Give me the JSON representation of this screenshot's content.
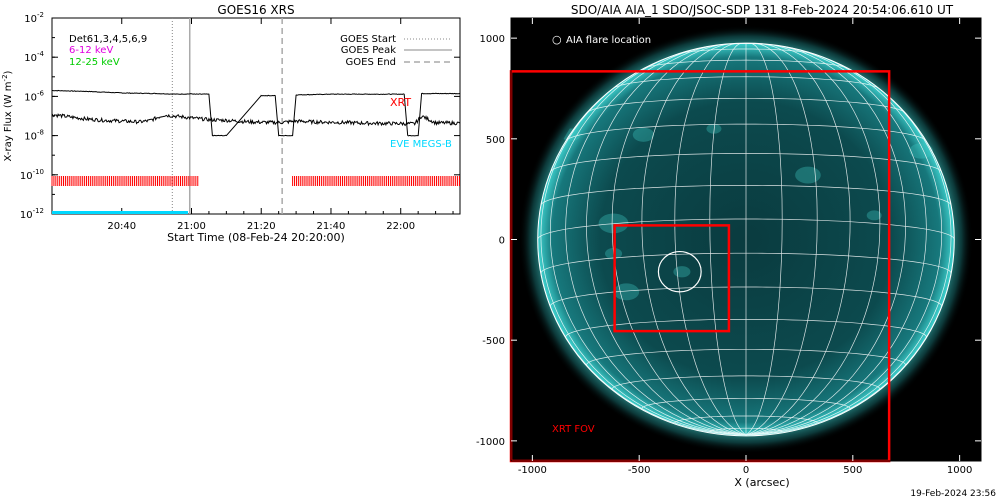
{
  "goes_panel": {
    "title": "GOES16 XRS",
    "ylabel_main": "X-ray Flux (W m",
    "ylabel_exp": "-2",
    "ylabel_close": ")",
    "xlabel": "Start Time (08-Feb-24 20:20:00)",
    "legend_left": [
      {
        "text": "Det61,3,4,5,6,9",
        "color": "#000000"
      },
      {
        "text": "6-12 keV",
        "color": "#e000e0"
      },
      {
        "text": "12-25 keV",
        "color": "#00cc00"
      }
    ],
    "legend_right": [
      {
        "text": "GOES Start",
        "style": "dotted"
      },
      {
        "text": "GOES Peak",
        "style": "solid"
      },
      {
        "text": "GOES End",
        "style": "dashed"
      }
    ],
    "xrt_label": "XRT",
    "eve_label": "EVE MEGS-B"
  },
  "aia_panel": {
    "title": "SDO/AIA AIA_1 SDO/JSOC-SDP 131  8-Feb-2024 20:54:06.610 UT",
    "legend_marker": "○",
    "legend_text": "AIA flare location",
    "xrt_fov_label": "XRT FOV",
    "xlabel": "X (arcsec)",
    "footer": "19-Feb-2024 23:56"
  },
  "chart_data": [
    {
      "type": "line",
      "title": "GOES16 XRS",
      "xlabel": "Start Time (08-Feb-24 20:20:00)",
      "ylabel": "X-ray Flux (W m^-2)",
      "y_scale": "log",
      "xlim_minutes": [
        0,
        117
      ],
      "ylim": [
        1e-12,
        0.01
      ],
      "x_ticks": [
        {
          "minute": 20,
          "label": "20:40"
        },
        {
          "minute": 40,
          "label": "21:00"
        },
        {
          "minute": 60,
          "label": "21:20"
        },
        {
          "minute": 80,
          "label": "21:40"
        },
        {
          "minute": 100,
          "label": "22:00"
        }
      ],
      "y_ticks": [
        {
          "value": 1e-12,
          "base": "10",
          "exp": "-12"
        },
        {
          "value": 1e-10,
          "base": "10",
          "exp": "-10"
        },
        {
          "value": 1e-08,
          "base": "10",
          "exp": "-8"
        },
        {
          "value": 1e-06,
          "base": "10",
          "exp": "-6"
        },
        {
          "value": 0.0001,
          "base": "10",
          "exp": "-4"
        },
        {
          "value": 0.01,
          "base": "10",
          "exp": "-2"
        }
      ],
      "series": [
        {
          "name": "GOES long channel (1-8 Å)",
          "x": [
            0,
            10,
            20,
            30,
            36,
            40,
            41,
            45,
            46,
            50,
            60,
            62,
            64,
            65,
            69,
            70,
            80,
            90,
            100,
            101,
            102,
            105,
            106,
            110,
            117
          ],
          "y": [
            2e-06,
            1.8e-06,
            1.5e-06,
            1.4e-06,
            1.3e-06,
            1.35e-06,
            1.3e-06,
            1.3e-06,
            1e-08,
            1e-08,
            1.1e-06,
            1.1e-06,
            1.1e-06,
            1e-08,
            1e-08,
            1.2e-06,
            1.3e-06,
            1.3e-06,
            1.3e-06,
            1.3e-06,
            1e-08,
            1e-08,
            1.4e-06,
            1.4e-06,
            1.4e-06
          ],
          "color": "#000000"
        },
        {
          "name": "GOES short channel (0.5-4 Å)",
          "x": [
            0,
            5,
            10,
            15,
            20,
            25,
            28,
            30,
            32,
            35,
            40,
            45,
            50,
            55,
            60,
            65,
            70,
            75,
            80,
            85,
            90,
            95,
            100,
            104,
            106,
            110,
            117
          ],
          "y": [
            1.2e-07,
            9e-08,
            7e-08,
            6e-08,
            5.5e-08,
            5e-08,
            5.8e-08,
            8e-08,
            1.1e-07,
            1e-07,
            8e-08,
            6.5e-08,
            6e-08,
            5.2e-08,
            4.8e-08,
            4.6e-08,
            5.5e-08,
            5e-08,
            4.8e-08,
            4.6e-08,
            4.3e-08,
            4.2e-08,
            4.1e-08,
            4e-08,
            1e-07,
            4.5e-08,
            4.3e-08
          ],
          "color": "#000000"
        }
      ],
      "xrt_coverage": [
        {
          "start": 0,
          "end": 42
        },
        {
          "start": 69,
          "end": 117
        }
      ],
      "eve_coverage": [
        {
          "start": 0,
          "end": 39
        }
      ],
      "events": {
        "goes_start": 34.5,
        "goes_peak": 39.5,
        "goes_end": 66
      }
    },
    {
      "type": "scatter",
      "title": "SDO/AIA AIA_1 SDO/JSOC-SDP 131  8-Feb-2024 20:54:06.610 UT",
      "xlabel": "X (arcsec)",
      "xlim": [
        -1100,
        1100
      ],
      "ylim": [
        -1100,
        1100
      ],
      "x_ticks": [
        -1000,
        -500,
        0,
        500,
        1000
      ],
      "y_ticks": [
        -1000,
        -500,
        0,
        500,
        1000
      ],
      "solar_radius_arcsec": 975,
      "xrt_fov": {
        "x": [
          -1100,
          670
        ],
        "y": [
          -1100,
          835
        ]
      },
      "xrt_subfield": {
        "x": [
          -615,
          -80
        ],
        "y": [
          -455,
          70
        ]
      },
      "aia_flare_location": {
        "x": -310,
        "y": -160,
        "radius": 100
      }
    }
  ]
}
